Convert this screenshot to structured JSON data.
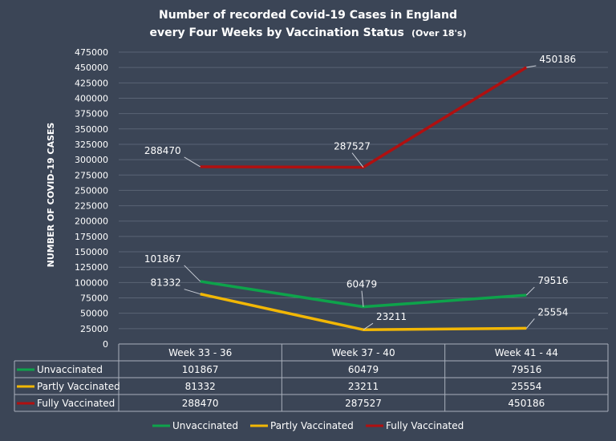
{
  "chart_data": {
    "type": "line",
    "title_line1": "Number of recorded Covid-19 Cases in England",
    "title_line2": "every Four Weeks by Vaccination Status",
    "title_suffix": "(Over 18's)",
    "ylabel": "NUMBER OF COVID-19 CASES",
    "xlabel": "",
    "categories": [
      "Week 33 - 36",
      "Week 37 - 40",
      "Week 41 - 44"
    ],
    "ylim": [
      0,
      475000
    ],
    "ytick_step": 25000,
    "y_ticks": [
      "0",
      "25000",
      "50000",
      "75000",
      "100000",
      "125000",
      "150000",
      "175000",
      "200000",
      "225000",
      "250000",
      "275000",
      "300000",
      "325000",
      "350000",
      "375000",
      "400000",
      "425000",
      "450000",
      "475000"
    ],
    "grid": true,
    "legend": "bottom",
    "data_table": true,
    "series": [
      {
        "name": "Unvaccinated",
        "values": [
          101867,
          60479,
          79516
        ],
        "labels": [
          "101867",
          "60479",
          "79516"
        ],
        "color": "#0ea34b"
      },
      {
        "name": "Partly Vaccinated",
        "values": [
          81332,
          23211,
          25554
        ],
        "labels": [
          "81332",
          "23211",
          "25554"
        ],
        "color": "#f2b705"
      },
      {
        "name": "Fully Vaccinated",
        "values": [
          288470,
          287527,
          450186
        ],
        "labels": [
          "288470",
          "287527",
          "450186"
        ],
        "color": "#b01010"
      }
    ]
  }
}
